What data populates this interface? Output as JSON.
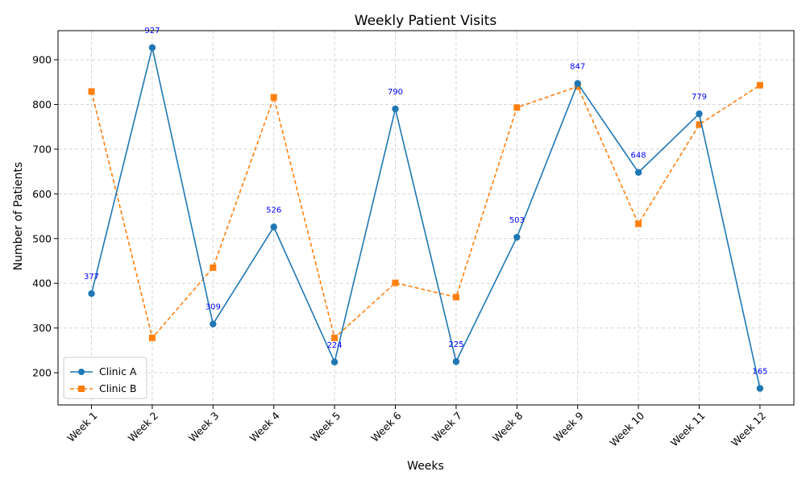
{
  "chart_data": {
    "type": "line",
    "title": "Weekly Patient Visits",
    "xlabel": "Weeks",
    "ylabel": "Number of Patients",
    "categories": [
      "Week 1",
      "Week 2",
      "Week 3",
      "Week 4",
      "Week 5",
      "Week 6",
      "Week 7",
      "Week 8",
      "Week 9",
      "Week 10",
      "Week 11",
      "Week 12"
    ],
    "ylim": [
      128,
      965
    ],
    "yticks": [
      200,
      300,
      400,
      500,
      600,
      700,
      800,
      900
    ],
    "grid": true,
    "legend_position": "lower-left",
    "series": [
      {
        "name": "Clinic A",
        "values": [
          377,
          927,
          309,
          526,
          224,
          790,
          225,
          503,
          847,
          648,
          779,
          165
        ],
        "color": "#1f77b4",
        "line_style": "solid",
        "marker": "circle",
        "data_labels": true
      },
      {
        "name": "Clinic B",
        "values": [
          829,
          278,
          435,
          816,
          278,
          401,
          369,
          793,
          840,
          533,
          755,
          843
        ],
        "color": "#ff7f0e",
        "line_style": "dashed",
        "marker": "square",
        "data_labels": false
      }
    ]
  }
}
